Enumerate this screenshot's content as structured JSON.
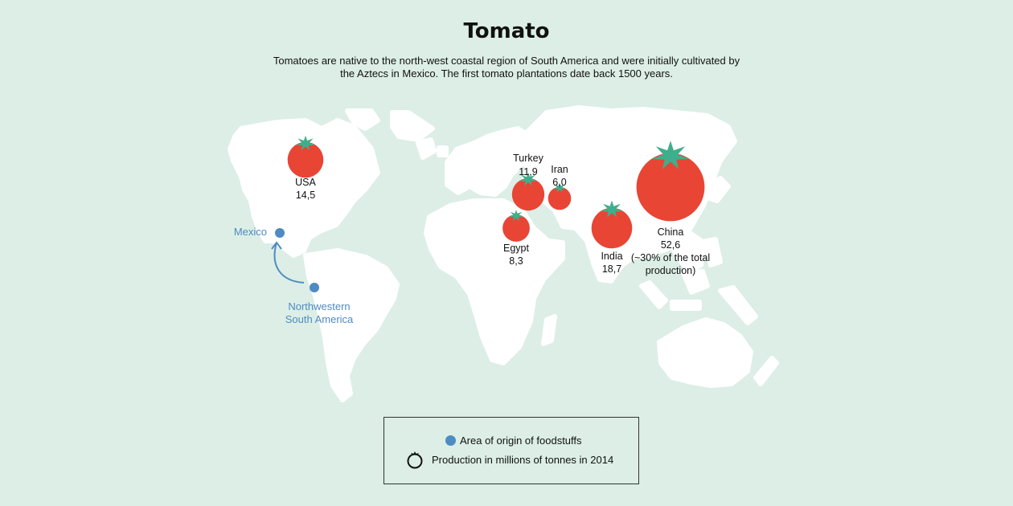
{
  "title": "Tomato",
  "subtitle": "Tomatoes are native to the north-west coastal region of South America and were initially cultivated by the Aztecs in Mexico. The first tomato plantations date back 1500 years.",
  "colors": {
    "background": "#dceee6",
    "land": "#ffffff",
    "tomato": "#e84535",
    "leaf": "#3fae8c",
    "origin": "#4f8bc3"
  },
  "producers": [
    {
      "country": "USA",
      "value": "14,5",
      "amount": 14.5
    },
    {
      "country": "Turkey",
      "value": "11,9",
      "amount": 11.9
    },
    {
      "country": "Iran",
      "value": "6,0",
      "amount": 6.0
    },
    {
      "country": "Egypt",
      "value": "8,3",
      "amount": 8.3
    },
    {
      "country": "India",
      "value": "18,7",
      "amount": 18.7
    },
    {
      "country": "China",
      "value": "52,6",
      "amount": 52.6,
      "note": [
        "(~30% of the total",
        "production)"
      ]
    }
  ],
  "origin": {
    "start": "Mexico",
    "end_line1": "Northwestern",
    "end_line2": "South America"
  },
  "legend": {
    "origin_label": "Area of origin of foodstuffs",
    "production_label": "Production in millions of tonnes in 2014",
    "origin_icon": "blue-dot-icon",
    "production_icon": "tomato-outline-icon"
  }
}
